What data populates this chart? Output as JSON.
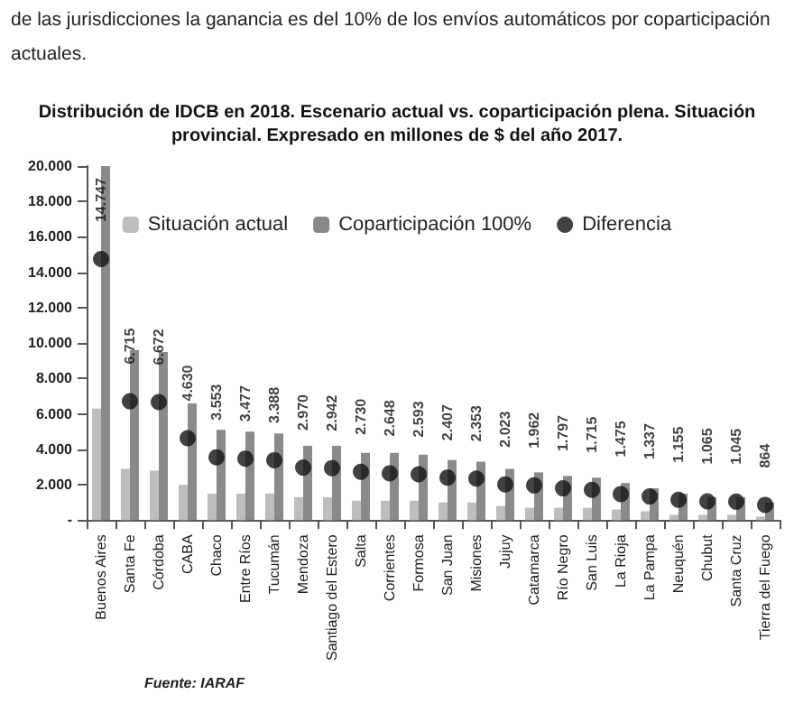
{
  "chart_data": {
    "type": "bar",
    "title": "Distribución de IDCB en 2018. Escenario actual vs. coparticipación plena. Situación provincial. Expresado en millones de $ del año 2017.",
    "annotations": [
      "de las jurisdicciones la ganancia es del 10% de los envíos automáticos por coparticipación actuales.",
      "Fuente: IARAF"
    ],
    "categories": [
      "Buenos Aires",
      "Santa Fe",
      "Córdoba",
      "CABA",
      "Chaco",
      "Entre Ríos",
      "Tucumán",
      "Mendoza",
      "Santiago del Estero",
      "Salta",
      "Corrientes",
      "Formosa",
      "San Juan",
      "Misiones",
      "Jujuy",
      "Catamarca",
      "Río Negro",
      "San Luis",
      "La Rioja",
      "La Pampa",
      "Neuquén",
      "Chubut",
      "Santa Cruz",
      "Tierra del Fuego"
    ],
    "series": [
      {
        "name": "Situación actual",
        "color": "#bdbdbd",
        "values": [
          6300,
          2900,
          2800,
          2000,
          1500,
          1500,
          1500,
          1300,
          1300,
          1100,
          1100,
          1100,
          1000,
          1000,
          800,
          700,
          700,
          700,
          600,
          500,
          300,
          300,
          300,
          200
        ]
      },
      {
        "name": "Coparticipación 100%",
        "color": "#8a8a8a",
        "values": [
          20000,
          9600,
          9500,
          6600,
          5100,
          5000,
          4900,
          4200,
          4200,
          3800,
          3800,
          3700,
          3400,
          3300,
          2900,
          2700,
          2500,
          2400,
          2100,
          1800,
          1500,
          1300,
          1300,
          1000
        ]
      },
      {
        "name": "Diferencia",
        "type": "scatter",
        "color": "#111111",
        "values": [
          14747,
          6715,
          6672,
          4630,
          3553,
          3477,
          3388,
          2970,
          2942,
          2730,
          2648,
          2593,
          2407,
          2353,
          2023,
          1962,
          1797,
          1715,
          1475,
          1337,
          1155,
          1065,
          1045,
          864
        ],
        "value_labels": [
          "14.747",
          "6.715",
          "6.672",
          "4.630",
          "3.553",
          "3.477",
          "3.388",
          "2.970",
          "2.942",
          "2.730",
          "2.648",
          "2.593",
          "2.407",
          "2.353",
          "2.023",
          "1.962",
          "1.797",
          "1.715",
          "1.475",
          "1.337",
          "1.155",
          "1.065",
          "1.045",
          "864"
        ]
      }
    ],
    "ylim": [
      0,
      20000
    ],
    "yticks": [
      {
        "value": 0,
        "label": "-"
      },
      {
        "value": 2000,
        "label": "2.000"
      },
      {
        "value": 4000,
        "label": "4.000"
      },
      {
        "value": 6000,
        "label": "6.000"
      },
      {
        "value": 8000,
        "label": "8.000"
      },
      {
        "value": 10000,
        "label": "10.000"
      },
      {
        "value": 12000,
        "label": "12.000"
      },
      {
        "value": 14000,
        "label": "14.000"
      },
      {
        "value": 16000,
        "label": "16.000"
      },
      {
        "value": 18000,
        "label": "18.000"
      },
      {
        "value": 20000,
        "label": "20.000"
      }
    ],
    "grid": false,
    "legend": "top",
    "marker": "circle"
  }
}
